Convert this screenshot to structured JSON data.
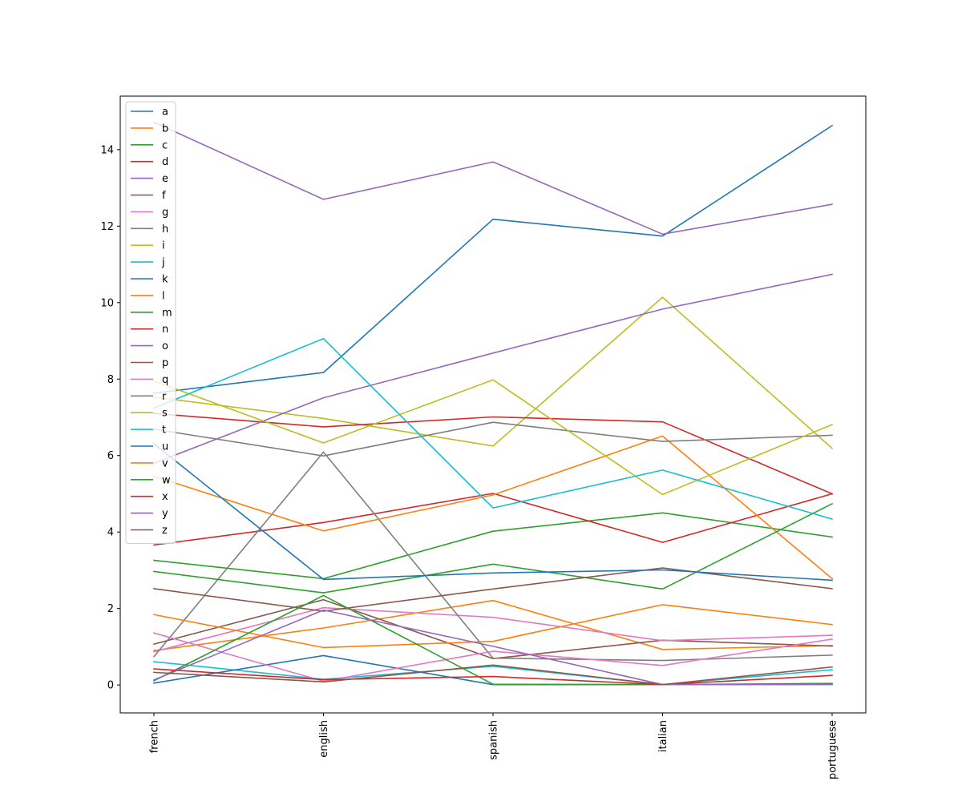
{
  "chart_data": {
    "type": "line",
    "categories": [
      "french",
      "english",
      "spanish",
      "italian",
      "portuguese"
    ],
    "ylim": [
      -0.73,
      15.4
    ],
    "yticks": [
      0,
      2,
      4,
      6,
      8,
      10,
      12,
      14
    ],
    "grid": false,
    "legend_position": "upper-left",
    "series": [
      {
        "name": "a",
        "color": "#1f77b4",
        "values": [
          7.63,
          8.17,
          12.18,
          11.74,
          14.63
        ]
      },
      {
        "name": "b",
        "color": "#ff7f0e",
        "values": [
          0.9,
          1.49,
          2.21,
          0.93,
          1.03
        ]
      },
      {
        "name": "c",
        "color": "#2ca02c",
        "values": [
          3.26,
          2.78,
          4.02,
          4.5,
          3.87
        ]
      },
      {
        "name": "d",
        "color": "#d62728",
        "values": [
          3.66,
          4.25,
          5.01,
          3.73,
          5.0
        ]
      },
      {
        "name": "e",
        "color": "#9467bd",
        "values": [
          14.72,
          12.7,
          13.68,
          11.79,
          12.57
        ]
      },
      {
        "name": "f",
        "color": "#8c564b",
        "values": [
          1.07,
          2.23,
          0.69,
          1.17,
          1.02
        ]
      },
      {
        "name": "g",
        "color": "#e377c2",
        "values": [
          0.87,
          2.02,
          1.77,
          1.16,
          1.3
        ]
      },
      {
        "name": "h",
        "color": "#7f7f7f",
        "values": [
          0.74,
          6.09,
          0.7,
          0.64,
          0.78
        ]
      },
      {
        "name": "i",
        "color": "#bcbd22",
        "values": [
          7.53,
          6.97,
          6.25,
          10.14,
          6.19
        ]
      },
      {
        "name": "j",
        "color": "#17becf",
        "values": [
          0.61,
          0.15,
          0.49,
          0.01,
          0.4
        ]
      },
      {
        "name": "k",
        "color": "#1f77b4",
        "values": [
          0.05,
          0.77,
          0.01,
          0.01,
          0.02
        ]
      },
      {
        "name": "l",
        "color": "#ff7f0e",
        "values": [
          5.46,
          4.03,
          4.97,
          6.51,
          2.78
        ]
      },
      {
        "name": "m",
        "color": "#2ca02c",
        "values": [
          2.97,
          2.41,
          3.16,
          2.51,
          4.74
        ]
      },
      {
        "name": "n",
        "color": "#d62728",
        "values": [
          7.1,
          6.75,
          7.01,
          6.88,
          5.0
        ]
      },
      {
        "name": "o",
        "color": "#9467bd",
        "values": [
          5.8,
          7.51,
          8.68,
          9.83,
          10.74
        ]
      },
      {
        "name": "p",
        "color": "#8c564b",
        "values": [
          2.52,
          1.93,
          2.51,
          3.06,
          2.52
        ]
      },
      {
        "name": "q",
        "color": "#e377c2",
        "values": [
          1.36,
          0.1,
          0.88,
          0.51,
          1.2
        ]
      },
      {
        "name": "r",
        "color": "#7f7f7f",
        "values": [
          6.69,
          5.99,
          6.87,
          6.37,
          6.53
        ]
      },
      {
        "name": "s",
        "color": "#bcbd22",
        "values": [
          7.95,
          6.33,
          7.98,
          4.98,
          6.81
        ]
      },
      {
        "name": "t",
        "color": "#17becf",
        "values": [
          7.24,
          9.06,
          4.63,
          5.62,
          4.34
        ]
      },
      {
        "name": "u",
        "color": "#1f77b4",
        "values": [
          6.31,
          2.76,
          2.93,
          3.01,
          2.74
        ]
      },
      {
        "name": "v",
        "color": "#ff7f0e",
        "values": [
          1.84,
          0.98,
          1.14,
          2.1,
          1.58
        ]
      },
      {
        "name": "w",
        "color": "#2ca02c",
        "values": [
          0.11,
          2.34,
          0.02,
          0.01,
          0.04
        ]
      },
      {
        "name": "x",
        "color": "#d62728",
        "values": [
          0.42,
          0.14,
          0.22,
          0.01,
          0.25
        ]
      },
      {
        "name": "y",
        "color": "#9467bd",
        "values": [
          0.13,
          1.96,
          1.01,
          0.01,
          0.01
        ]
      },
      {
        "name": "z",
        "color": "#8c564b",
        "values": [
          0.33,
          0.08,
          0.52,
          0.01,
          0.47
        ]
      }
    ]
  }
}
